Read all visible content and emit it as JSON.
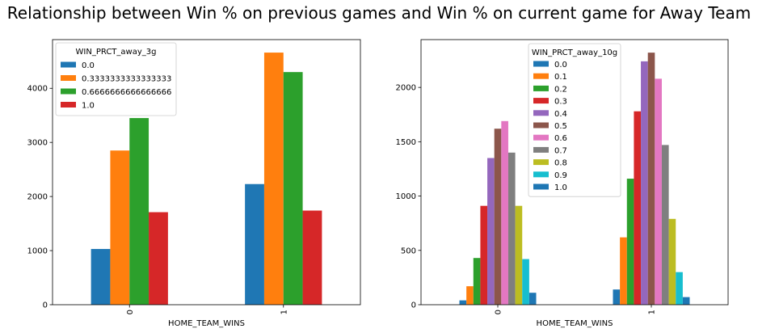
{
  "suptitle": "Relationship between Win % on previous games and Win % on current game for Away Team",
  "chart_data": [
    {
      "type": "bar",
      "xlabel": "HOME_TEAM_WINS",
      "ylabel": "",
      "categories": [
        "0",
        "1"
      ],
      "ylim": [
        0,
        4900
      ],
      "yticks": [
        0,
        1000,
        2000,
        3000,
        4000
      ],
      "grid": false,
      "legend": {
        "title": "WIN_PRCT_away_3g",
        "position": "upper-left"
      },
      "series": [
        {
          "name": "0.0",
          "color": "#1f77b4",
          "values": [
            1030,
            2230
          ]
        },
        {
          "name": "0.3333333333333333",
          "color": "#ff7f0e",
          "values": [
            2850,
            4660
          ]
        },
        {
          "name": "0.6666666666666666",
          "color": "#2ca02c",
          "values": [
            3450,
            4300
          ]
        },
        {
          "name": "1.0",
          "color": "#d62728",
          "values": [
            1710,
            1740
          ]
        }
      ]
    },
    {
      "type": "bar",
      "xlabel": "HOME_TEAM_WINS",
      "ylabel": "",
      "categories": [
        "0",
        "1"
      ],
      "ylim": [
        0,
        2440
      ],
      "yticks": [
        0,
        500,
        1000,
        1500,
        2000
      ],
      "grid": false,
      "legend": {
        "title": "WIN_PRCT_away_10g",
        "position": "upper-center"
      },
      "series": [
        {
          "name": "0.0",
          "color": "#1f77b4",
          "values": [
            40,
            140
          ]
        },
        {
          "name": "0.1",
          "color": "#ff7f0e",
          "values": [
            170,
            620
          ]
        },
        {
          "name": "0.2",
          "color": "#2ca02c",
          "values": [
            430,
            1160
          ]
        },
        {
          "name": "0.3",
          "color": "#d62728",
          "values": [
            910,
            1780
          ]
        },
        {
          "name": "0.4",
          "color": "#9467bd",
          "values": [
            1350,
            2240
          ]
        },
        {
          "name": "0.5",
          "color": "#8c564b",
          "values": [
            1620,
            2320
          ]
        },
        {
          "name": "0.6",
          "color": "#e377c2",
          "values": [
            1690,
            2080
          ]
        },
        {
          "name": "0.7",
          "color": "#7f7f7f",
          "values": [
            1400,
            1470
          ]
        },
        {
          "name": "0.8",
          "color": "#bcbd22",
          "values": [
            910,
            790
          ]
        },
        {
          "name": "0.9",
          "color": "#17becf",
          "values": [
            420,
            300
          ]
        },
        {
          "name": "1.0",
          "color": "#1f77b4",
          "values": [
            110,
            70
          ]
        }
      ]
    }
  ]
}
